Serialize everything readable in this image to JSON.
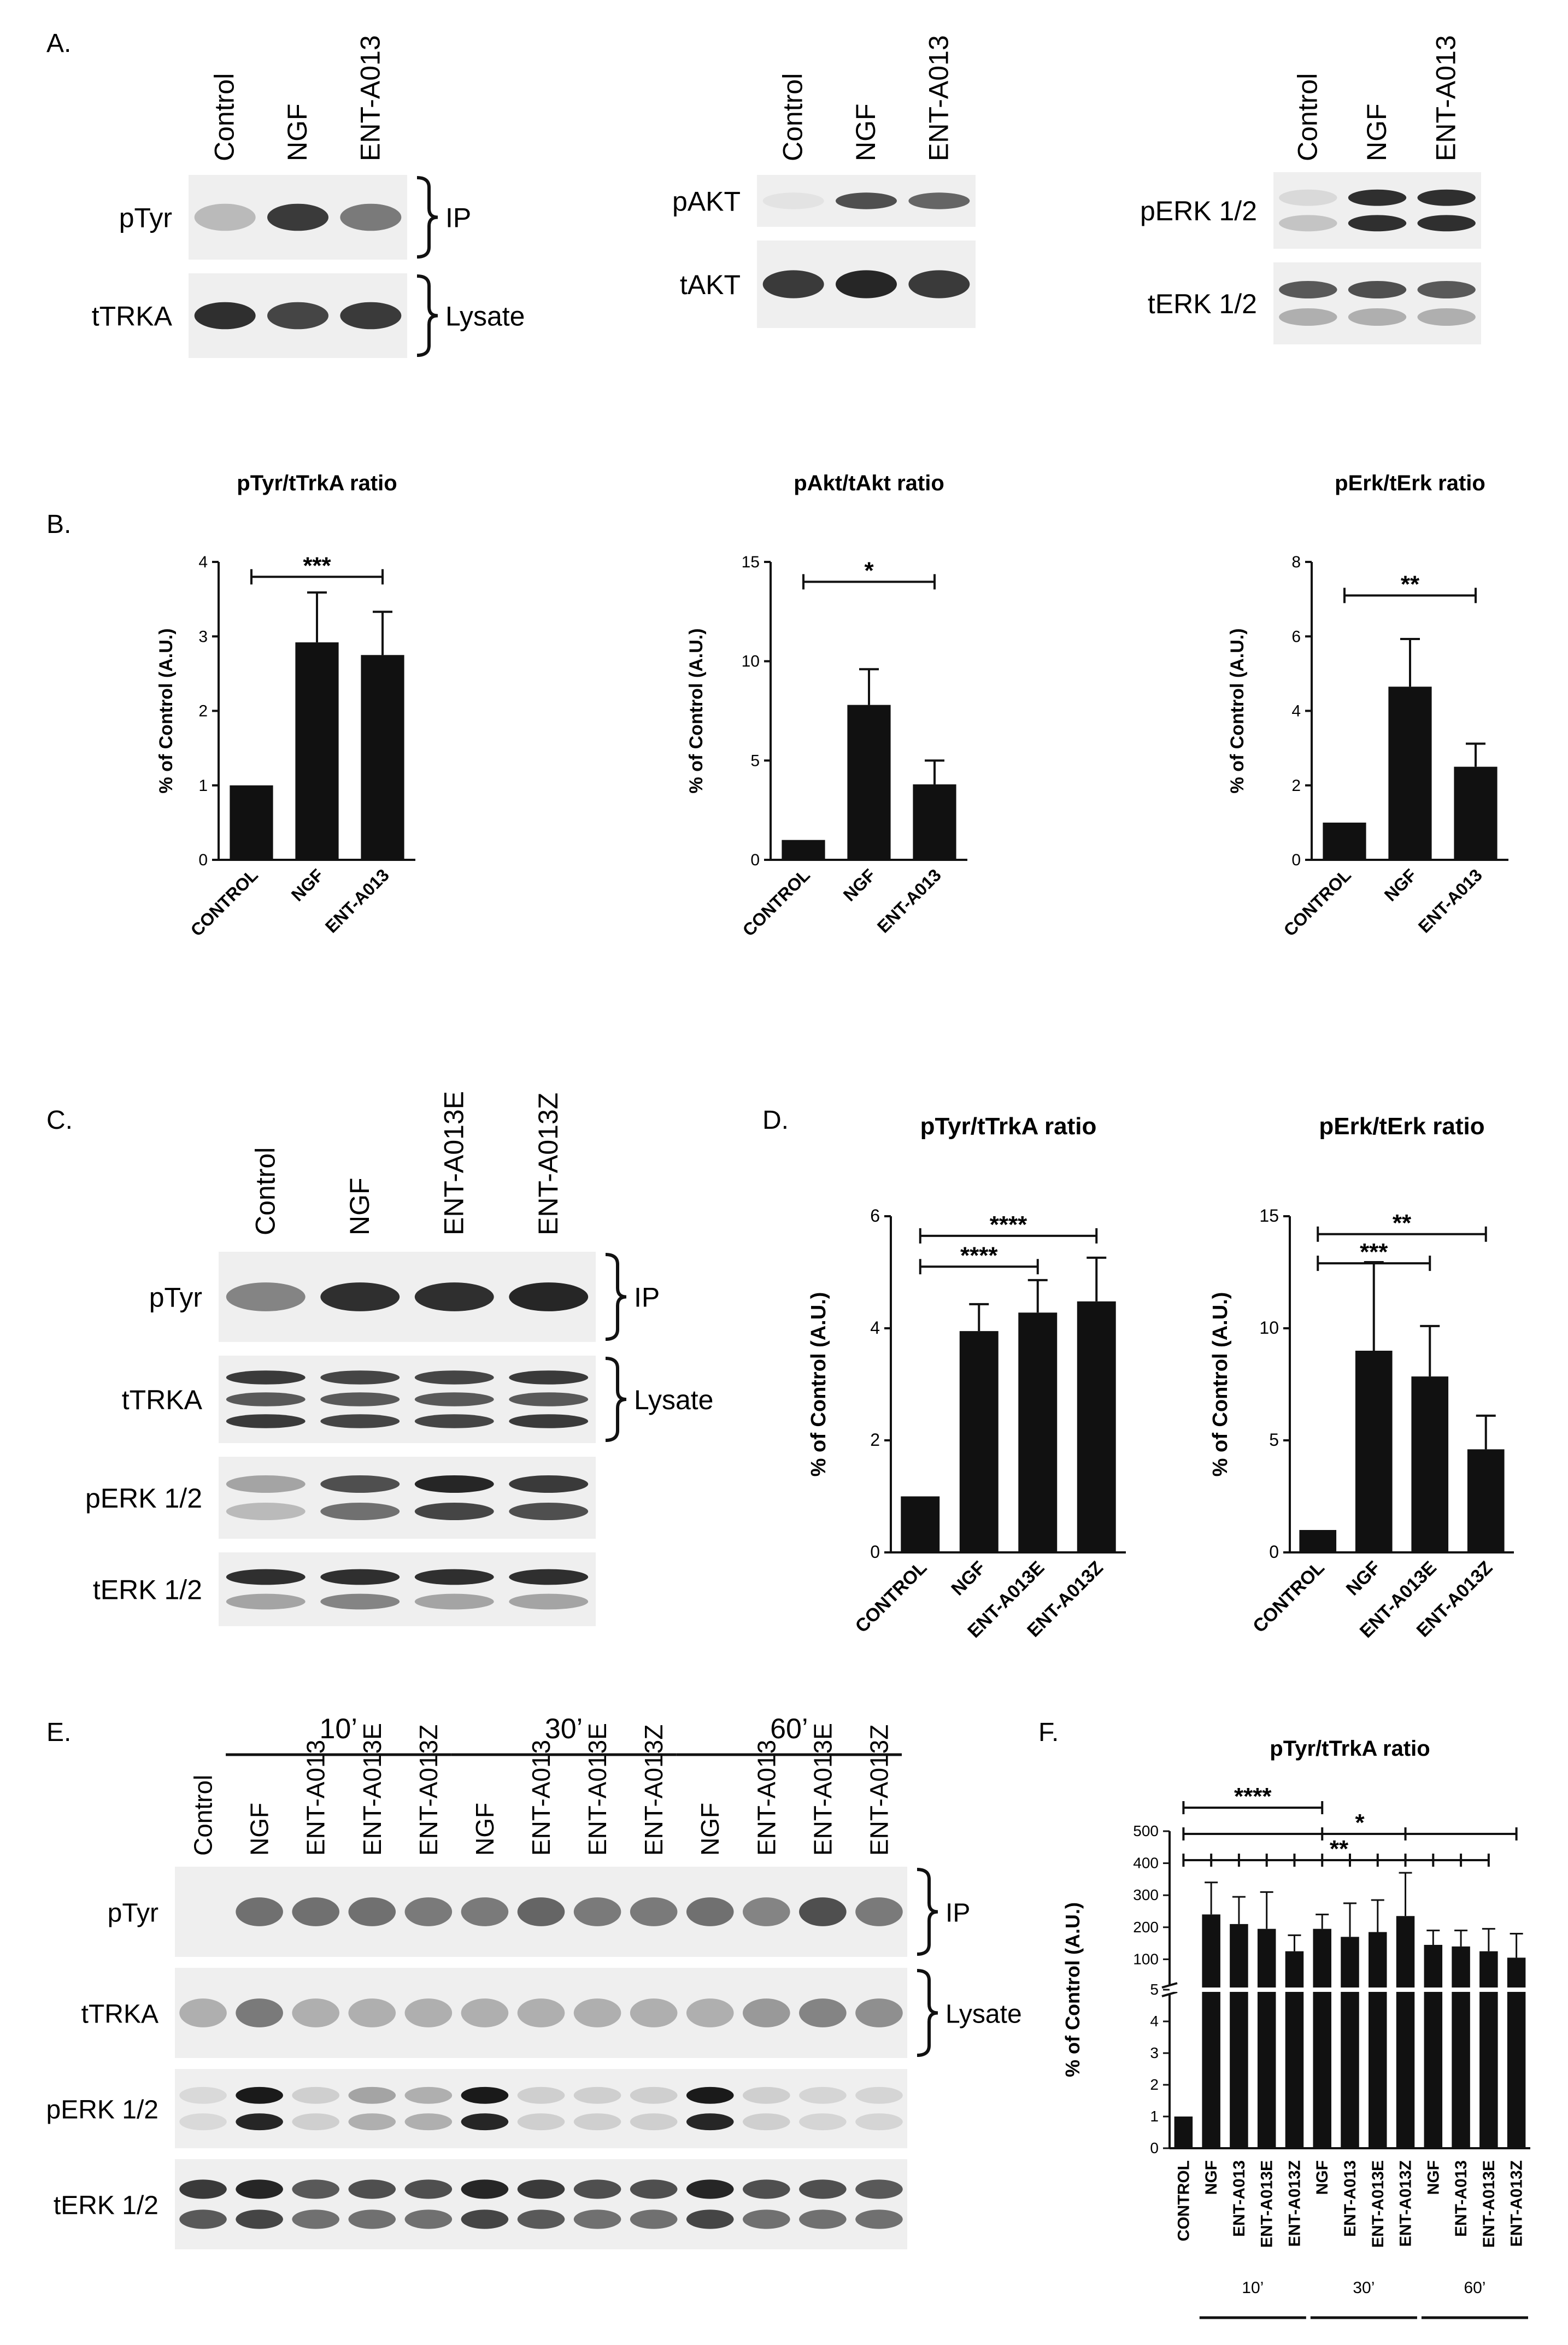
{
  "panel_labels": {
    "a": "A.",
    "b": "B.",
    "c": "C.",
    "d": "D.",
    "e": "E.",
    "f": "F."
  },
  "ink": "#111111",
  "blot_bg": "#efefef",
  "band_color": "#1a1a1a",
  "blots": {
    "a": [
      {
        "id": "tyr",
        "lanes": [
          "Control",
          "NGF",
          "ENT-A013"
        ],
        "rows": [
          {
            "label": "pTyr",
            "bracket": "IP",
            "bands": [
              [
                0.25
              ],
              [
                0.85
              ],
              [
                0.55
              ]
            ]
          },
          {
            "label": "tTRKA",
            "bracket": "Lysate",
            "bands": [
              [
                0.9
              ],
              [
                0.8
              ],
              [
                0.85
              ]
            ]
          }
        ]
      },
      {
        "id": "akt",
        "lanes": [
          "Control",
          "NGF",
          "ENT-A013"
        ],
        "rows": [
          {
            "label": "pAKT",
            "bracket": "",
            "bands": [
              [
                0.05
              ],
              [
                0.75
              ],
              [
                0.65
              ]
            ]
          },
          {
            "label": "tAKT",
            "bracket": "",
            "bands": [
              [
                0.85
              ],
              [
                0.95
              ],
              [
                0.85
              ]
            ]
          }
        ]
      },
      {
        "id": "erk",
        "lanes": [
          "Control",
          "NGF",
          "ENT-A013"
        ],
        "rows": [
          {
            "label": "pERK 1/2",
            "bracket": "",
            "bands": [
              [
                0.1,
                0.2
              ],
              [
                0.9,
                0.9
              ],
              [
                0.9,
                0.9
              ]
            ]
          },
          {
            "label": "tERK 1/2",
            "bracket": "",
            "bands": [
              [
                0.7,
                0.3
              ],
              [
                0.75,
                0.3
              ],
              [
                0.7,
                0.3
              ]
            ]
          }
        ]
      }
    ],
    "c": {
      "lanes": [
        "Control",
        "NGF",
        "ENT-A013E",
        "ENT-A013Z"
      ],
      "rows": [
        {
          "label": "pTyr",
          "bracket": "IP",
          "bands": [
            [
              0.5
            ],
            [
              0.9
            ],
            [
              0.9
            ],
            [
              0.95
            ]
          ]
        },
        {
          "label": "tTRKA",
          "bracket": "Lysate",
          "bands": [
            [
              0.85,
              0.7,
              0.85
            ],
            [
              0.8,
              0.7,
              0.8
            ],
            [
              0.8,
              0.7,
              0.8
            ],
            [
              0.85,
              0.7,
              0.85
            ]
          ]
        },
        {
          "label": "pERK 1/2",
          "bracket": "",
          "bands": [
            [
              0.35,
              0.25
            ],
            [
              0.75,
              0.6
            ],
            [
              0.95,
              0.8
            ],
            [
              0.85,
              0.75
            ]
          ]
        },
        {
          "label": "tERK 1/2",
          "bracket": "",
          "bands": [
            [
              0.9,
              0.35
            ],
            [
              0.9,
              0.5
            ],
            [
              0.9,
              0.35
            ],
            [
              0.9,
              0.35
            ]
          ]
        }
      ]
    },
    "e": {
      "lanes": [
        "Control",
        "NGF",
        "ENT-A013",
        "ENT-A013E",
        "ENT-A013Z",
        "NGF",
        "ENT-A013",
        "ENT-A013E",
        "ENT-A013Z",
        "NGF",
        "ENT-A013",
        "ENT-A013E",
        "ENT-A013Z"
      ],
      "groups": [
        {
          "label": "10’",
          "from": 1,
          "to": 4
        },
        {
          "label": "30’",
          "from": 5,
          "to": 8
        },
        {
          "label": "60’",
          "from": 9,
          "to": 12
        }
      ],
      "rows": [
        {
          "label": "pTyr",
          "bracket": "IP",
          "bands": [
            [
              0.0
            ],
            [
              0.6
            ],
            [
              0.6
            ],
            [
              0.6
            ],
            [
              0.55
            ],
            [
              0.55
            ],
            [
              0.65
            ],
            [
              0.55
            ],
            [
              0.55
            ],
            [
              0.6
            ],
            [
              0.5
            ],
            [
              0.75
            ],
            [
              0.55
            ]
          ]
        },
        {
          "label": "tTRKA",
          "bracket": "Lysate",
          "bands": [
            [
              0.3
            ],
            [
              0.55
            ],
            [
              0.3
            ],
            [
              0.3
            ],
            [
              0.3
            ],
            [
              0.3
            ],
            [
              0.3
            ],
            [
              0.3
            ],
            [
              0.3
            ],
            [
              0.3
            ],
            [
              0.4
            ],
            [
              0.5
            ],
            [
              0.45
            ]
          ]
        },
        {
          "label": "pERK 1/2",
          "bracket": "",
          "bands": [
            [
              0.1,
              0.1
            ],
            [
              1.0,
              0.95
            ],
            [
              0.15,
              0.15
            ],
            [
              0.35,
              0.3
            ],
            [
              0.3,
              0.3
            ],
            [
              1.0,
              0.95
            ],
            [
              0.15,
              0.15
            ],
            [
              0.15,
              0.15
            ],
            [
              0.15,
              0.15
            ],
            [
              1.0,
              0.95
            ],
            [
              0.15,
              0.15
            ],
            [
              0.12,
              0.12
            ],
            [
              0.12,
              0.12
            ]
          ]
        },
        {
          "label": "tERK 1/2",
          "bracket": "",
          "bands": [
            [
              0.85,
              0.7
            ],
            [
              0.95,
              0.8
            ],
            [
              0.7,
              0.6
            ],
            [
              0.75,
              0.6
            ],
            [
              0.75,
              0.6
            ],
            [
              0.95,
              0.8
            ],
            [
              0.85,
              0.7
            ],
            [
              0.75,
              0.6
            ],
            [
              0.75,
              0.6
            ],
            [
              0.95,
              0.8
            ],
            [
              0.75,
              0.6
            ],
            [
              0.75,
              0.6
            ],
            [
              0.7,
              0.6
            ]
          ]
        }
      ]
    }
  },
  "chart_data": [
    {
      "panel": "B",
      "type": "bar",
      "title": "pTyr/tTrkA ratio",
      "ylabel": "% of Control (A.U.)",
      "categories": [
        "CONTROL",
        "NGF",
        "ENT-A013"
      ],
      "values": [
        1,
        2.92,
        2.75
      ],
      "errors": [
        0,
        0.67,
        0.58
      ],
      "ylim": [
        0,
        4
      ],
      "yticks": [
        "0",
        "1",
        "2",
        "3",
        "4"
      ],
      "significance": [
        {
          "from": 0,
          "to": 2,
          "label": "***",
          "y": 3.8
        }
      ]
    },
    {
      "panel": "B",
      "type": "bar",
      "title": "pAkt/tAkt ratio",
      "ylabel": "% of Control (A.U.)",
      "categories": [
        "CONTROL",
        "NGF",
        "ENT-A013"
      ],
      "values": [
        1,
        7.8,
        3.8
      ],
      "errors": [
        0,
        1.8,
        1.2
      ],
      "ylim": [
        0,
        15
      ],
      "yticks": [
        "0",
        "5",
        "10",
        "15"
      ],
      "significance": [
        {
          "from": 0,
          "to": 2,
          "label": "*",
          "y": 14.0
        }
      ]
    },
    {
      "panel": "B",
      "type": "bar",
      "title": "pErk/tErk ratio",
      "ylabel": "% of Control (A.U.)",
      "categories": [
        "CONTROL",
        "NGF",
        "ENT-A013"
      ],
      "values": [
        1,
        4.65,
        2.5
      ],
      "errors": [
        0,
        1.28,
        0.62
      ],
      "ylim": [
        0,
        8
      ],
      "yticks": [
        "0",
        "2",
        "4",
        "6",
        "8"
      ],
      "significance": [
        {
          "from": 0,
          "to": 2,
          "label": "**",
          "y": 7.1
        }
      ]
    },
    {
      "panel": "D",
      "type": "bar",
      "title": "pTyr/tTrkA ratio",
      "ylabel": "% of Control (A.U.)",
      "categories": [
        "CONTROL",
        "NGF",
        "ENT-A013E",
        "ENT-A013Z"
      ],
      "values": [
        1,
        3.95,
        4.28,
        4.48
      ],
      "errors": [
        0,
        0.48,
        0.58,
        0.78
      ],
      "ylim": [
        0,
        6
      ],
      "yticks": [
        "0",
        "2",
        "4",
        "6"
      ],
      "significance": [
        {
          "from": 0,
          "to": 2,
          "label": "****",
          "y": 5.1
        },
        {
          "from": 0,
          "to": 3,
          "label": "****",
          "y": 5.65
        }
      ]
    },
    {
      "panel": "D",
      "type": "bar",
      "title": "pErk/tErk ratio",
      "ylabel": "% of Control (A.U.)",
      "categories": [
        "CONTROL",
        "NGF",
        "ENT-A013E",
        "ENT-A013Z"
      ],
      "values": [
        1,
        9.0,
        7.85,
        4.6
      ],
      "errors": [
        0,
        3.95,
        2.25,
        1.5
      ],
      "ylim": [
        0,
        15
      ],
      "yticks": [
        "0",
        "5",
        "10",
        "15"
      ],
      "significance": [
        {
          "from": 0,
          "to": 2,
          "label": "***",
          "y": 12.9
        },
        {
          "from": 0,
          "to": 3,
          "label": "**",
          "y": 14.2
        }
      ]
    },
    {
      "panel": "F",
      "type": "bar",
      "title": "pTyr/tTrkA ratio",
      "ylabel": "% of Control (A.U.)",
      "categories": [
        "CONTROL",
        "NGF",
        "ENT-A013",
        "ENT-A013E",
        "ENT-A013Z",
        "NGF",
        "ENT-A013",
        "ENT-A013E",
        "ENT-A013Z",
        "NGF",
        "ENT-A013",
        "ENT-A013E",
        "ENT-A013Z"
      ],
      "values": [
        1,
        240,
        210,
        195,
        125,
        195,
        170,
        185,
        235,
        145,
        140,
        125,
        105
      ],
      "errors": [
        0,
        100,
        85,
        115,
        50,
        45,
        105,
        100,
        135,
        45,
        50,
        70,
        75
      ],
      "broken_axis": {
        "lower": [
          0,
          5
        ],
        "upper": [
          5,
          500
        ]
      },
      "yticks_lower": [
        "0",
        "1",
        "2",
        "3",
        "4",
        "5"
      ],
      "yticks_upper": [
        "100",
        "200",
        "300",
        "400",
        "500"
      ],
      "time_groups": [
        "10’",
        "30’",
        "60’"
      ],
      "significance": [
        {
          "label": "****",
          "from": 0,
          "to": 5,
          "ticks": [
            0,
            5
          ]
        },
        {
          "label": "*",
          "from": 0,
          "to": 12,
          "ticks": [
            0,
            5,
            8,
            12
          ]
        },
        {
          "label": "**",
          "from": 0,
          "to": 11,
          "ticks": [
            0,
            1,
            2,
            3,
            4,
            5,
            6,
            7,
            8,
            9,
            10,
            11
          ]
        }
      ]
    }
  ]
}
